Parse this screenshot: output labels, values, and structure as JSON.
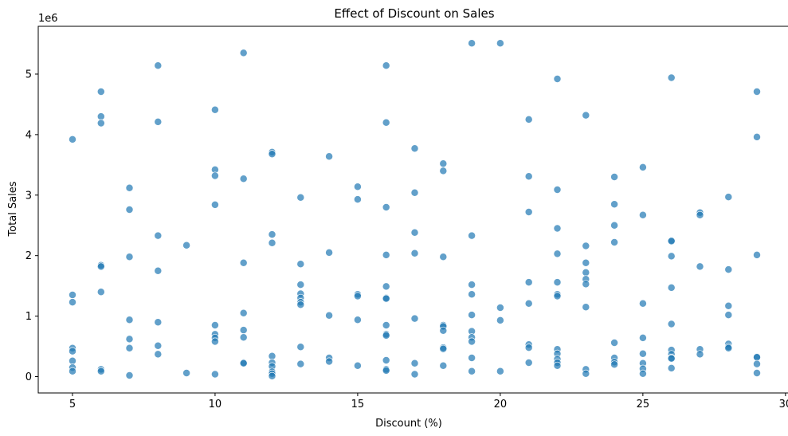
{
  "chart_data": {
    "type": "scatter",
    "title": "Effect of Discount on Sales",
    "xlabel": "Discount (%)",
    "ylabel": "Total Sales",
    "y_offset_label": "1e6",
    "xlim": [
      3.8,
      30.2
    ],
    "ylim": [
      -0.27,
      5.79
    ],
    "x_ticks": [
      5,
      10,
      15,
      20,
      25,
      30
    ],
    "y_ticks": [
      0,
      1,
      2,
      3,
      4,
      5
    ],
    "grid": false,
    "point_color": "#1f77b4",
    "series": [
      {
        "points": [
          [
            5,
            3.92
          ],
          [
            5,
            1.35
          ],
          [
            5,
            1.23
          ],
          [
            5,
            0.47
          ],
          [
            5,
            0.42
          ],
          [
            5,
            0.26
          ],
          [
            5,
            0.15
          ],
          [
            5,
            0.09
          ],
          [
            6,
            4.71
          ],
          [
            6,
            4.3
          ],
          [
            6,
            4.19
          ],
          [
            6,
            1.84
          ],
          [
            6,
            1.82
          ],
          [
            6,
            1.4
          ],
          [
            6,
            0.12
          ],
          [
            6,
            0.09
          ],
          [
            7,
            3.12
          ],
          [
            7,
            2.76
          ],
          [
            7,
            1.98
          ],
          [
            7,
            0.94
          ],
          [
            7,
            0.62
          ],
          [
            7,
            0.47
          ],
          [
            7,
            0.02
          ],
          [
            8,
            5.14
          ],
          [
            8,
            4.21
          ],
          [
            8,
            2.33
          ],
          [
            8,
            1.75
          ],
          [
            8,
            0.9
          ],
          [
            8,
            0.51
          ],
          [
            8,
            0.37
          ],
          [
            9,
            2.17
          ],
          [
            9,
            0.06
          ],
          [
            10,
            4.41
          ],
          [
            10,
            3.42
          ],
          [
            10,
            3.32
          ],
          [
            10,
            2.84
          ],
          [
            10,
            0.85
          ],
          [
            10,
            0.7
          ],
          [
            10,
            0.64
          ],
          [
            10,
            0.58
          ],
          [
            10,
            0.04
          ],
          [
            11,
            5.35
          ],
          [
            11,
            3.27
          ],
          [
            11,
            1.88
          ],
          [
            11,
            1.05
          ],
          [
            11,
            0.77
          ],
          [
            11,
            0.65
          ],
          [
            11,
            0.23
          ],
          [
            11,
            0.22
          ],
          [
            12,
            3.71
          ],
          [
            12,
            3.68
          ],
          [
            12,
            2.35
          ],
          [
            12,
            2.21
          ],
          [
            12,
            0.34
          ],
          [
            12,
            0.23
          ],
          [
            12,
            0.17
          ],
          [
            12,
            0.08
          ],
          [
            12,
            0.05
          ],
          [
            12,
            0.01
          ],
          [
            13,
            2.96
          ],
          [
            13,
            1.86
          ],
          [
            13,
            1.52
          ],
          [
            13,
            1.37
          ],
          [
            13,
            1.3
          ],
          [
            13,
            1.23
          ],
          [
            13,
            1.19
          ],
          [
            13,
            0.49
          ],
          [
            13,
            0.21
          ],
          [
            14,
            3.64
          ],
          [
            14,
            2.05
          ],
          [
            14,
            1.01
          ],
          [
            14,
            0.31
          ],
          [
            14,
            0.25
          ],
          [
            15,
            3.14
          ],
          [
            15,
            2.93
          ],
          [
            15,
            1.36
          ],
          [
            15,
            1.33
          ],
          [
            15,
            0.94
          ],
          [
            15,
            0.18
          ],
          [
            16,
            5.14
          ],
          [
            16,
            4.2
          ],
          [
            16,
            2.8
          ],
          [
            16,
            2.01
          ],
          [
            16,
            1.49
          ],
          [
            16,
            1.3
          ],
          [
            16,
            1.29
          ],
          [
            16,
            0.85
          ],
          [
            16,
            0.7
          ],
          [
            16,
            0.68
          ],
          [
            16,
            0.27
          ],
          [
            16,
            0.12
          ],
          [
            16,
            0.1
          ],
          [
            17,
            3.77
          ],
          [
            17,
            3.04
          ],
          [
            17,
            2.38
          ],
          [
            17,
            2.04
          ],
          [
            17,
            0.96
          ],
          [
            17,
            0.22
          ],
          [
            17,
            0.04
          ],
          [
            18,
            3.52
          ],
          [
            18,
            3.4
          ],
          [
            18,
            1.98
          ],
          [
            18,
            0.85
          ],
          [
            18,
            0.83
          ],
          [
            18,
            0.76
          ],
          [
            18,
            0.48
          ],
          [
            18,
            0.46
          ],
          [
            18,
            0.18
          ],
          [
            19,
            5.51
          ],
          [
            19,
            2.33
          ],
          [
            19,
            1.52
          ],
          [
            19,
            1.36
          ],
          [
            19,
            1.02
          ],
          [
            19,
            0.75
          ],
          [
            19,
            0.65
          ],
          [
            19,
            0.58
          ],
          [
            19,
            0.31
          ],
          [
            19,
            0.09
          ],
          [
            20,
            5.51
          ],
          [
            20,
            1.14
          ],
          [
            20,
            0.93
          ],
          [
            20,
            0.09
          ],
          [
            21,
            4.25
          ],
          [
            21,
            3.31
          ],
          [
            21,
            2.72
          ],
          [
            21,
            1.56
          ],
          [
            21,
            1.21
          ],
          [
            21,
            0.53
          ],
          [
            21,
            0.48
          ],
          [
            21,
            0.23
          ],
          [
            22,
            4.92
          ],
          [
            22,
            3.09
          ],
          [
            22,
            2.45
          ],
          [
            22,
            2.03
          ],
          [
            22,
            1.56
          ],
          [
            22,
            1.36
          ],
          [
            22,
            1.33
          ],
          [
            22,
            0.45
          ],
          [
            22,
            0.38
          ],
          [
            22,
            0.29
          ],
          [
            22,
            0.23
          ],
          [
            22,
            0.18
          ],
          [
            23,
            4.32
          ],
          [
            23,
            2.16
          ],
          [
            23,
            1.88
          ],
          [
            23,
            1.72
          ],
          [
            23,
            1.61
          ],
          [
            23,
            1.53
          ],
          [
            23,
            1.15
          ],
          [
            23,
            0.12
          ],
          [
            23,
            0.05
          ],
          [
            24,
            3.3
          ],
          [
            24,
            2.85
          ],
          [
            24,
            2.5
          ],
          [
            24,
            2.22
          ],
          [
            24,
            0.56
          ],
          [
            24,
            0.31
          ],
          [
            24,
            0.24
          ],
          [
            24,
            0.2
          ],
          [
            25,
            3.46
          ],
          [
            25,
            2.67
          ],
          [
            25,
            1.21
          ],
          [
            25,
            0.64
          ],
          [
            25,
            0.38
          ],
          [
            25,
            0.22
          ],
          [
            25,
            0.13
          ],
          [
            25,
            0.05
          ],
          [
            26,
            4.94
          ],
          [
            26,
            2.25
          ],
          [
            26,
            2.24
          ],
          [
            26,
            1.99
          ],
          [
            26,
            1.47
          ],
          [
            26,
            0.87
          ],
          [
            26,
            0.44
          ],
          [
            26,
            0.37
          ],
          [
            26,
            0.31
          ],
          [
            26,
            0.3
          ],
          [
            26,
            0.14
          ],
          [
            27,
            2.71
          ],
          [
            27,
            2.67
          ],
          [
            27,
            1.82
          ],
          [
            27,
            0.45
          ],
          [
            27,
            0.37
          ],
          [
            28,
            2.97
          ],
          [
            28,
            1.77
          ],
          [
            28,
            1.17
          ],
          [
            28,
            1.02
          ],
          [
            28,
            0.54
          ],
          [
            28,
            0.49
          ],
          [
            28,
            0.47
          ],
          [
            29,
            4.71
          ],
          [
            29,
            3.96
          ],
          [
            29,
            2.01
          ],
          [
            29,
            0.33
          ],
          [
            29,
            0.32
          ],
          [
            29,
            0.21
          ],
          [
            29,
            0.06
          ]
        ]
      }
    ]
  }
}
